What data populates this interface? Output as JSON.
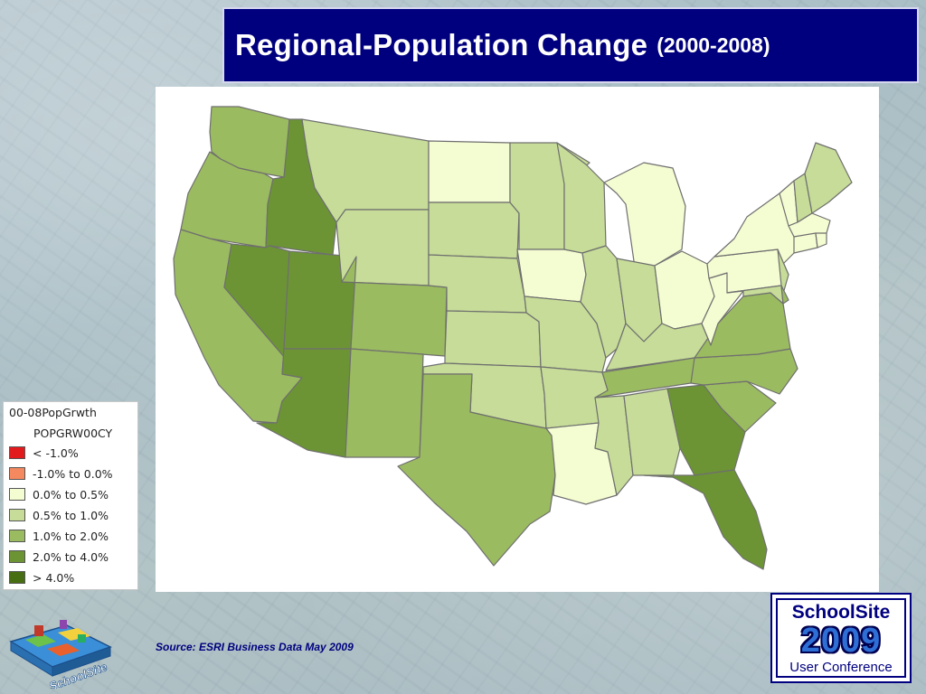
{
  "title": {
    "main": "Regional-Population Change",
    "sub": "(2000-2008)"
  },
  "legend": {
    "title": "00-08PopGrwth",
    "field": "POPGRW00CY",
    "classes": [
      {
        "label": "< -1.0%",
        "color": "#e31a1c"
      },
      {
        "label": "-1.0% to 0.0%",
        "color": "#f4895f"
      },
      {
        "label": "0.0% to 0.5%",
        "color": "#f4fcd2"
      },
      {
        "label": "0.5% to 1.0%",
        "color": "#c6dc98"
      },
      {
        "label": "1.0% to 2.0%",
        "color": "#9bbb60"
      },
      {
        "label": "2.0% to 4.0%",
        "color": "#6c9434"
      },
      {
        "label": "> 4.0%",
        "color": "#476e12"
      }
    ]
  },
  "map": {
    "states": [
      {
        "state": "WA",
        "class": 4
      },
      {
        "state": "OR",
        "class": 4
      },
      {
        "state": "CA",
        "class": 4
      },
      {
        "state": "ID",
        "class": 5
      },
      {
        "state": "NV",
        "class": 5
      },
      {
        "state": "UT",
        "class": 5
      },
      {
        "state": "AZ",
        "class": 5
      },
      {
        "state": "MT",
        "class": 3
      },
      {
        "state": "WY",
        "class": 3
      },
      {
        "state": "CO",
        "class": 4
      },
      {
        "state": "NM",
        "class": 4
      },
      {
        "state": "ND",
        "class": 2
      },
      {
        "state": "SD",
        "class": 3
      },
      {
        "state": "NE",
        "class": 3
      },
      {
        "state": "KS",
        "class": 3
      },
      {
        "state": "OK",
        "class": 3
      },
      {
        "state": "TX",
        "class": 4
      },
      {
        "state": "MN",
        "class": 3
      },
      {
        "state": "IA",
        "class": 2
      },
      {
        "state": "MO",
        "class": 3
      },
      {
        "state": "AR",
        "class": 3
      },
      {
        "state": "LA",
        "class": 2
      },
      {
        "state": "WI",
        "class": 3
      },
      {
        "state": "IL",
        "class": 3
      },
      {
        "state": "MI",
        "class": 2
      },
      {
        "state": "IN",
        "class": 3
      },
      {
        "state": "OH",
        "class": 2
      },
      {
        "state": "KY",
        "class": 3
      },
      {
        "state": "TN",
        "class": 4
      },
      {
        "state": "MS",
        "class": 3
      },
      {
        "state": "AL",
        "class": 3
      },
      {
        "state": "GA",
        "class": 5
      },
      {
        "state": "FL",
        "class": 5
      },
      {
        "state": "SC",
        "class": 4
      },
      {
        "state": "NC",
        "class": 4
      },
      {
        "state": "VA",
        "class": 4
      },
      {
        "state": "WV",
        "class": 2
      },
      {
        "state": "PA",
        "class": 2
      },
      {
        "state": "NY",
        "class": 2
      },
      {
        "state": "NJ",
        "class": 3
      },
      {
        "state": "MD",
        "class": 3
      },
      {
        "state": "DE",
        "class": 4
      },
      {
        "state": "VT",
        "class": 2
      },
      {
        "state": "NH",
        "class": 3
      },
      {
        "state": "ME",
        "class": 3
      },
      {
        "state": "MA",
        "class": 2
      },
      {
        "state": "CT",
        "class": 2
      },
      {
        "state": "RI",
        "class": 2
      }
    ]
  },
  "source": "Source:  ESRI Business Data  May 2009",
  "logo_left": {
    "text": "SchoolSite"
  },
  "logo_right": {
    "top": "SchoolSite",
    "year": "2009",
    "bottom": "User Conference"
  }
}
